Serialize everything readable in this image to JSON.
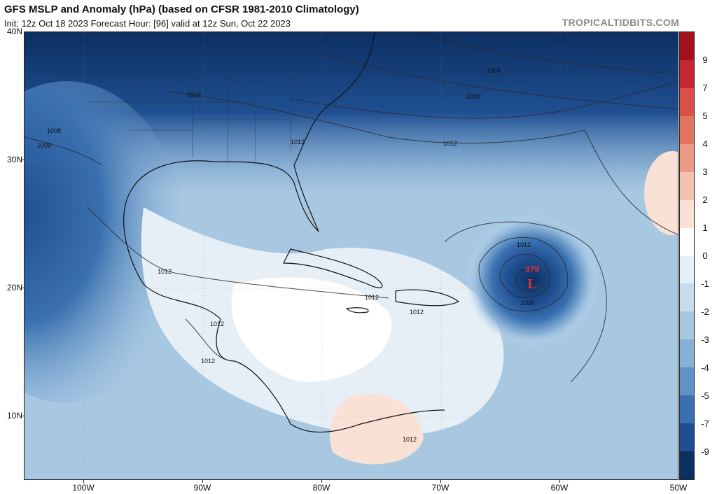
{
  "header": {
    "title": "GFS MSLP and Anomaly (hPa) (based on CFSR 1981-2010 Climatology)",
    "subtitle": "Init: 12z Oct 18 2023   Forecast Hour: [96]   valid at 12z Sun, Oct 22 2023",
    "brand": "TROPICALTIDBITS.COM"
  },
  "map": {
    "lat_labels": [
      "40N",
      "30N",
      "20N",
      "10N"
    ],
    "lon_labels": [
      "100W",
      "90W",
      "80W",
      "70W",
      "60W",
      "50W"
    ],
    "isobar_labels": [
      "1004",
      "1008",
      "1012",
      "1016"
    ],
    "low": {
      "symbol": "L",
      "pressure": "979",
      "color": "#e0303a"
    }
  },
  "colorbar": {
    "labels": [
      "9",
      "7",
      "5",
      "4",
      "3",
      "2",
      "1",
      "0",
      "-1",
      "-2",
      "-3",
      "-4",
      "-5",
      "-7",
      "-9"
    ],
    "colors": [
      "#a3101c",
      "#c32830",
      "#d9504a",
      "#e2735f",
      "#eb9a85",
      "#f3c1ad",
      "#fae1d5",
      "#ffffff",
      "#e6eff6",
      "#c9dced",
      "#a8c8e2",
      "#86b0d6",
      "#5f93c6",
      "#3a70b0",
      "#1f4f91",
      "#0c2f62"
    ]
  }
}
